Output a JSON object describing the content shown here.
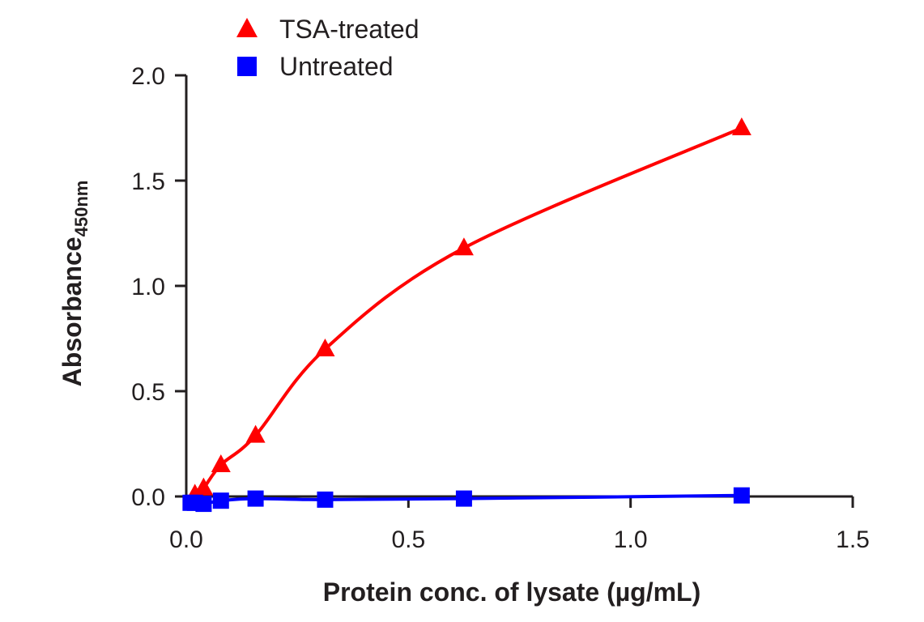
{
  "chart_data": {
    "type": "line",
    "title": "",
    "xlabel": "Protein conc. of lysate (µg/mL)",
    "ylabel": "Absorbance",
    "ylabel_subscript": "450nm",
    "xlim": [
      0,
      1.5
    ],
    "ylim": [
      0,
      2.0
    ],
    "xticks": [
      "0.0",
      "0.5",
      "1.0",
      "1.5"
    ],
    "yticks": [
      "0.0",
      "0.5",
      "1.0",
      "1.5",
      "2.0"
    ],
    "xtick_values": [
      0,
      0.5,
      1.0,
      1.5
    ],
    "ytick_values": [
      0,
      0.5,
      1.0,
      1.5,
      2.0
    ],
    "grid": false,
    "legend_position": "top-left",
    "series": [
      {
        "name": "TSA-treated",
        "color": "#ff0000",
        "marker": "triangle",
        "x": [
          0.0195,
          0.039,
          0.078,
          0.156,
          0.3125,
          0.625,
          1.25
        ],
        "y": [
          0.01,
          0.04,
          0.15,
          0.29,
          0.7,
          1.18,
          1.75
        ]
      },
      {
        "name": "Untreated",
        "color": "#0000ff",
        "marker": "square",
        "x": [
          0.0098,
          0.0195,
          0.039,
          0.078,
          0.156,
          0.3125,
          0.625,
          1.25
        ],
        "y": [
          -0.03,
          -0.03,
          -0.035,
          -0.02,
          -0.01,
          -0.015,
          -0.01,
          0.005
        ]
      }
    ]
  }
}
